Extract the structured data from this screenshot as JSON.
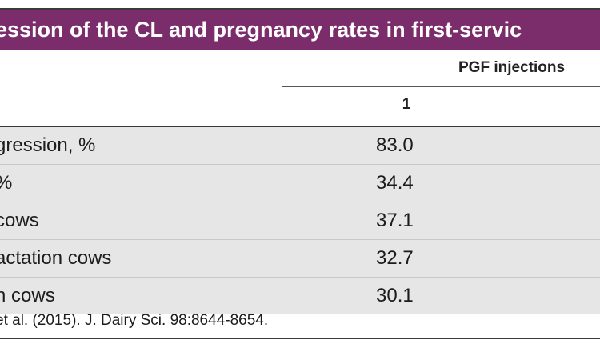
{
  "table": {
    "title": "ession of the CL and pregnancy rates in first-servic",
    "column_group_label": "PGF injections",
    "column_labels": [
      "1"
    ],
    "rows": [
      {
        "label": "gression, %",
        "value": "83.0"
      },
      {
        "label": "%",
        "value": "34.4"
      },
      {
        "label": "cows",
        "value": "37.1"
      },
      {
        "label": "actation cows",
        "value": "32.7"
      },
      {
        "label": "n cows",
        "value": "30.1"
      }
    ],
    "footnote": "et al. (2015). J. Dairy Sci. 98:8644-8654."
  },
  "colors": {
    "title_bar": "#7b2c6b",
    "row_shade": "#e6e6e6",
    "border": "#3a3a3a"
  }
}
